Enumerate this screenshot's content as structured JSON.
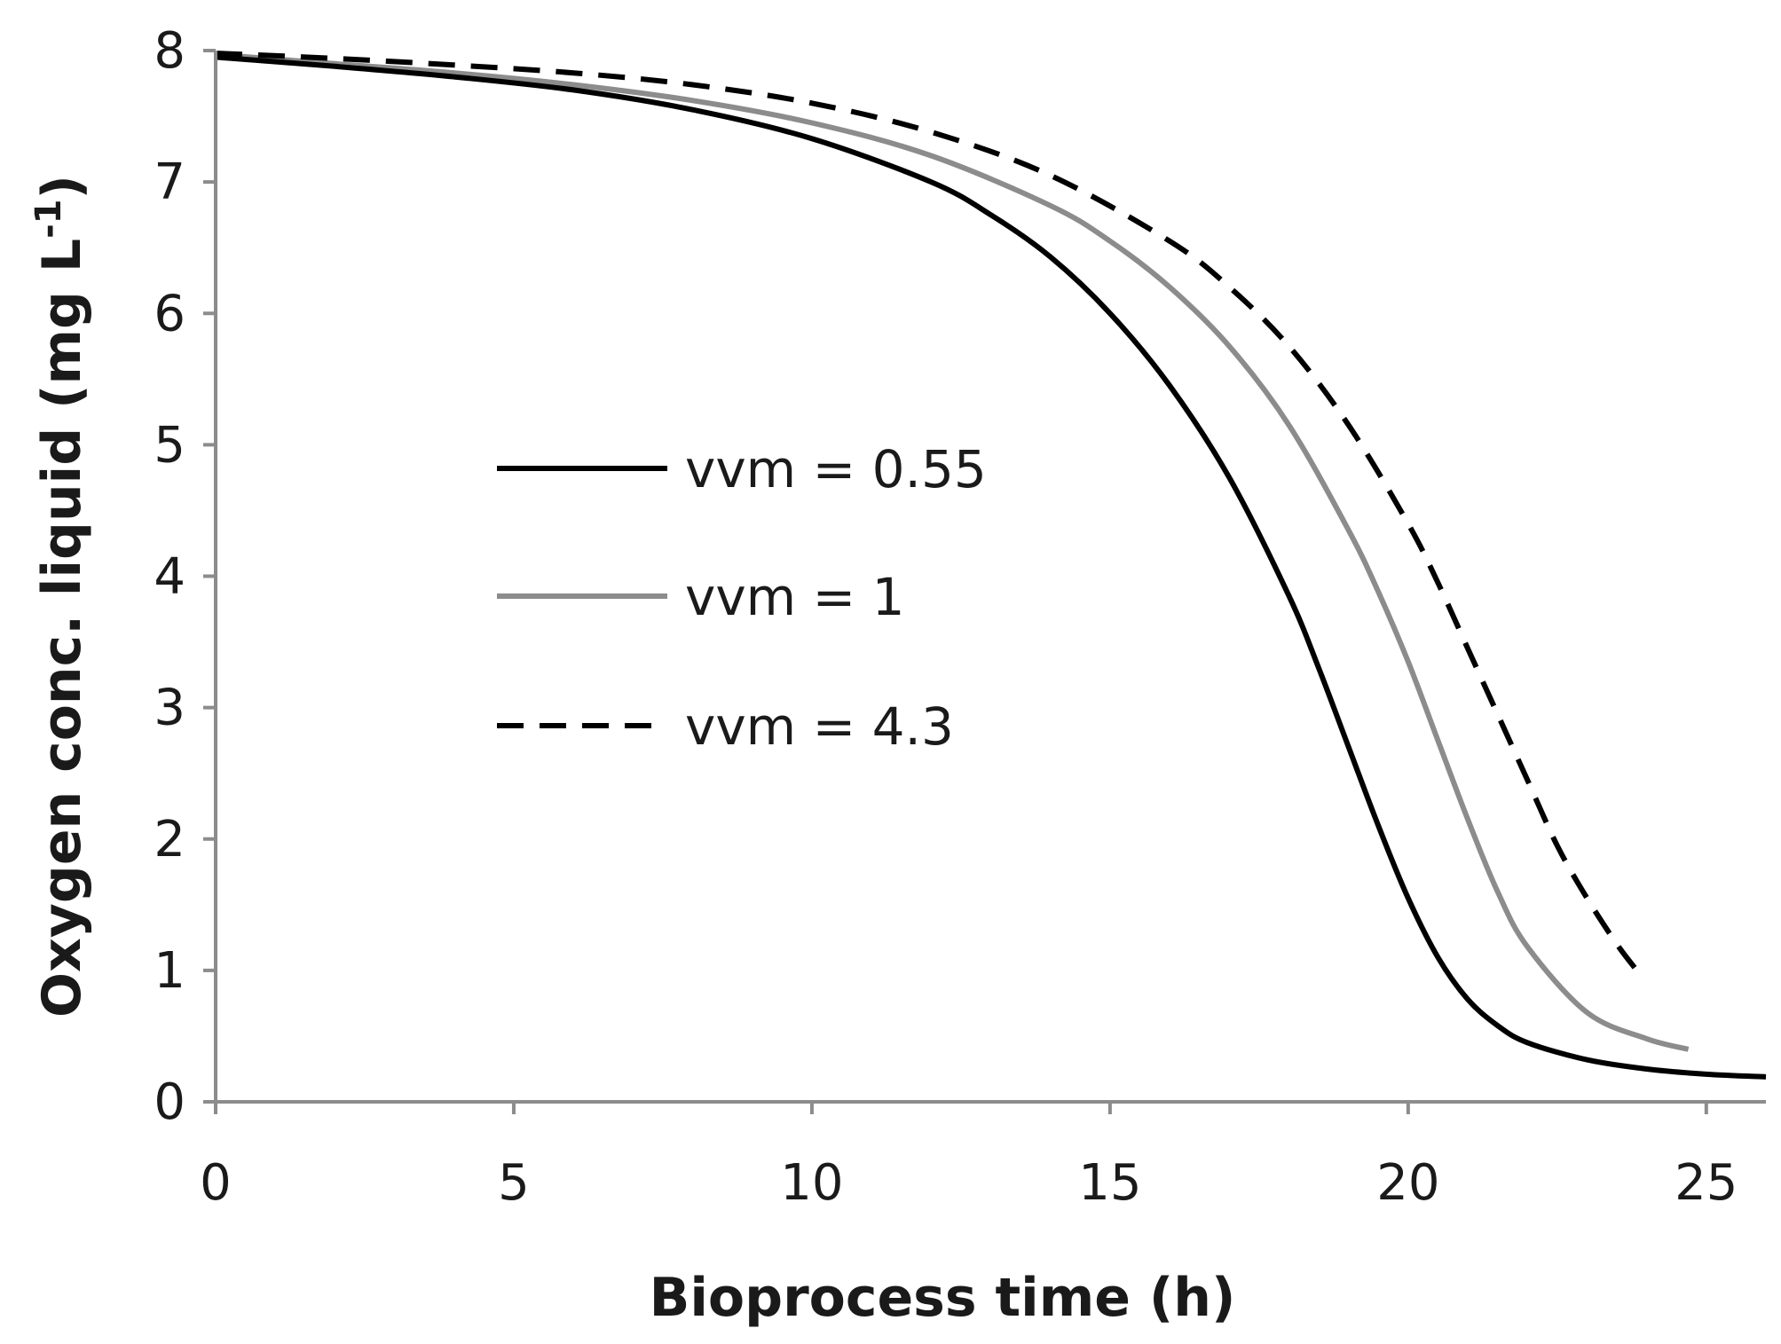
{
  "chart_data": {
    "type": "line",
    "title": "",
    "xlabel": "Bioprocess time (h)",
    "ylabel_main": "Oxygen conc. liquid (mg L",
    "ylabel_sup": "-1",
    "ylabel_close": ")",
    "xlim": [
      0,
      26
    ],
    "ylim": [
      0,
      8
    ],
    "x_ticks": [
      0,
      5,
      10,
      15,
      20,
      25
    ],
    "y_ticks": [
      0,
      1,
      2,
      3,
      4,
      5,
      6,
      7,
      8
    ],
    "x_tick_labels": [
      "0",
      "5",
      "10",
      "15",
      "20",
      "25"
    ],
    "y_tick_labels": [
      "0",
      "1",
      "2",
      "3",
      "4",
      "5",
      "6",
      "7",
      "8"
    ],
    "grid": false,
    "legend_position": "center-left",
    "series": [
      {
        "name": "vvm = 0.55",
        "color": "#000000",
        "style": "solid",
        "x": [
          0,
          2,
          4,
          6,
          8,
          10,
          12,
          13,
          14,
          15,
          16,
          17,
          18,
          18.5,
          19,
          19.5,
          20,
          20.5,
          21,
          21.5,
          22,
          23,
          24,
          25,
          26
        ],
        "y": [
          7.95,
          7.88,
          7.8,
          7.7,
          7.55,
          7.33,
          7.0,
          6.75,
          6.43,
          6.0,
          5.45,
          4.75,
          3.85,
          3.3,
          2.7,
          2.1,
          1.55,
          1.1,
          0.78,
          0.58,
          0.45,
          0.32,
          0.25,
          0.21,
          0.19
        ]
      },
      {
        "name": "vvm = 1",
        "color": "#8c8c8c",
        "style": "solid",
        "x": [
          0,
          2,
          4,
          6,
          8,
          10,
          12,
          14,
          15,
          16,
          17,
          18,
          19,
          19.5,
          20,
          20.5,
          21,
          21.5,
          22,
          23,
          24,
          24.7
        ],
        "y": [
          7.97,
          7.9,
          7.83,
          7.74,
          7.62,
          7.45,
          7.2,
          6.82,
          6.55,
          6.2,
          5.75,
          5.15,
          4.35,
          3.88,
          3.35,
          2.75,
          2.15,
          1.6,
          1.18,
          0.68,
          0.48,
          0.4
        ]
      },
      {
        "name": "vvm = 4.3",
        "color": "#000000",
        "style": "dashed",
        "x": [
          0,
          2,
          4,
          6,
          8,
          10,
          12,
          14,
          16,
          17,
          18,
          19,
          20,
          20.5,
          21,
          21.5,
          22,
          22.5,
          23,
          23.5,
          23.8
        ],
        "y": [
          7.98,
          7.94,
          7.89,
          7.83,
          7.74,
          7.6,
          7.38,
          7.05,
          6.55,
          6.2,
          5.75,
          5.15,
          4.4,
          3.95,
          3.45,
          2.95,
          2.45,
          1.95,
          1.55,
          1.2,
          1.02
        ]
      }
    ]
  }
}
